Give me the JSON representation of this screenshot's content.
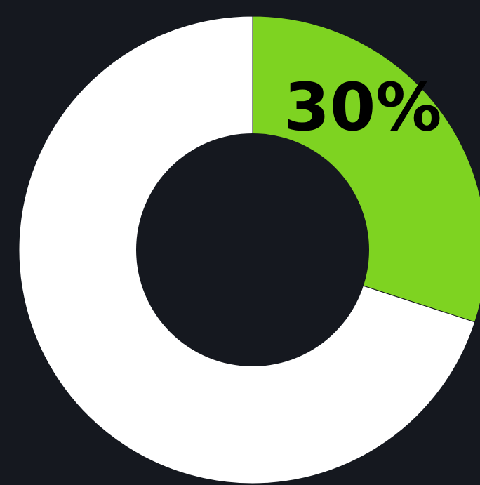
{
  "chart_data": {
    "type": "pie",
    "variant": "donut",
    "slices": [
      {
        "value": 30,
        "color": "#7ed321",
        "label": "30%"
      },
      {
        "value": 70,
        "color": "#ffffff",
        "label": ""
      }
    ],
    "start_angle": "12 o'clock",
    "direction": "clockwise",
    "legend": "none"
  },
  "colors": {
    "background": "#15181f",
    "label_text": "#000000"
  }
}
